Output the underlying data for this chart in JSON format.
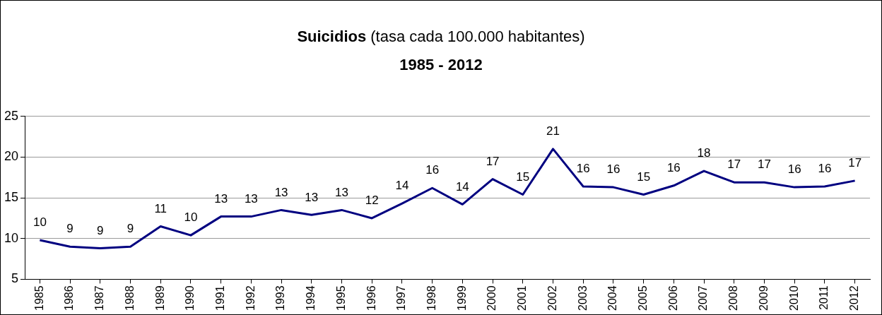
{
  "chart_data": {
    "type": "line",
    "title": "Suicidios (tasa cada 100.000 habitantes)",
    "subtitle": "1985 - 2012",
    "categories": [
      "1985",
      "1986",
      "1987",
      "1988",
      "1989",
      "1990",
      "1991",
      "1992",
      "1993",
      "1994",
      "1995",
      "1996",
      "1997",
      "1998",
      "1999",
      "2000",
      "2001",
      "2002",
      "2003",
      "2004",
      "2005",
      "2006",
      "2007",
      "2008",
      "2009",
      "2010",
      "2011",
      "2012"
    ],
    "series": [
      {
        "color": "#000080",
        "values": [
          9.8,
          9.0,
          8.8,
          9.0,
          11.5,
          10.4,
          12.7,
          12.7,
          13.5,
          12.9,
          13.5,
          12.5,
          14.3,
          16.2,
          14.2,
          17.3,
          15.4,
          21.0,
          16.4,
          16.3,
          15.4,
          16.5,
          18.3,
          16.9,
          16.9,
          16.3,
          16.4,
          17.1
        ],
        "value_labels": [
          "10",
          "9",
          "9",
          "9",
          "11",
          "10",
          "13",
          "13",
          "13",
          "13",
          "13",
          "12",
          "14",
          "16",
          "14",
          "17",
          "15",
          "21",
          "16",
          "16",
          "15",
          "16",
          "18",
          "17",
          "17",
          "16",
          "16",
          "17"
        ]
      }
    ],
    "ylim": [
      5,
      25
    ],
    "yticks": [
      5,
      10,
      15,
      20,
      25
    ],
    "grid": "y",
    "legend": false,
    "marker": "none",
    "line_style": "solid"
  }
}
